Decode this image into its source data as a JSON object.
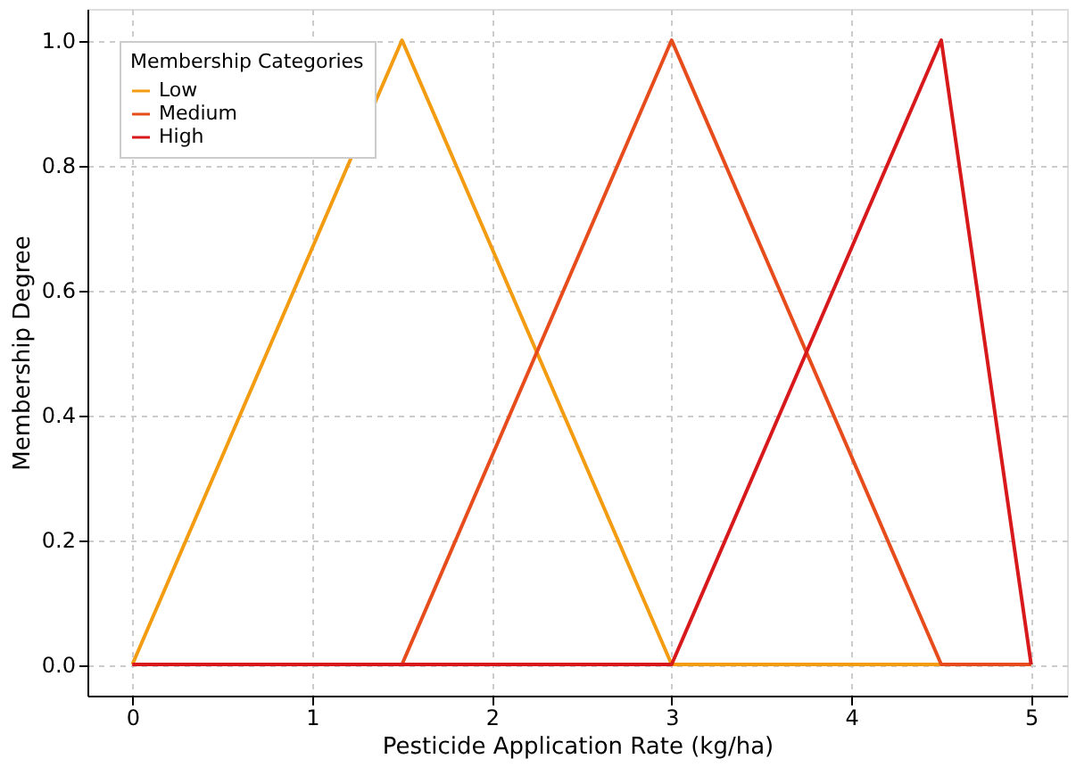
{
  "chart_data": {
    "type": "line",
    "xlabel": "Pesticide Application Rate (kg/ha)",
    "ylabel": "Membership Degree",
    "legend_title": "Membership Categories",
    "series": [
      {
        "name": "Low",
        "color": "#f39c12",
        "x": [
          0,
          1.5,
          3,
          5
        ],
        "values": [
          0,
          1,
          0,
          0
        ]
      },
      {
        "name": "Medium",
        "color": "#e74c1c",
        "x": [
          0,
          1.5,
          3,
          4.5,
          5
        ],
        "values": [
          0,
          0,
          1,
          0,
          0
        ]
      },
      {
        "name": "High",
        "color": "#d7191c",
        "x": [
          0,
          3,
          4.5,
          5
        ],
        "values": [
          0,
          0,
          1,
          0
        ]
      }
    ],
    "xlim": [
      -0.25,
      5.2
    ],
    "ylim": [
      -0.05,
      1.05
    ],
    "xticks": [
      0,
      1,
      2,
      3,
      4,
      5
    ],
    "yticks": [
      {
        "value": 0,
        "label": "0.0"
      },
      {
        "value": 0.2,
        "label": "0.2"
      },
      {
        "value": 0.4,
        "label": "0.4"
      },
      {
        "value": 0.6,
        "label": "0.6"
      },
      {
        "value": 0.8,
        "label": "0.8"
      },
      {
        "value": 1,
        "label": "1.0"
      }
    ],
    "grid": true,
    "legend": "top left",
    "line_style": "solid",
    "marker": "none"
  }
}
